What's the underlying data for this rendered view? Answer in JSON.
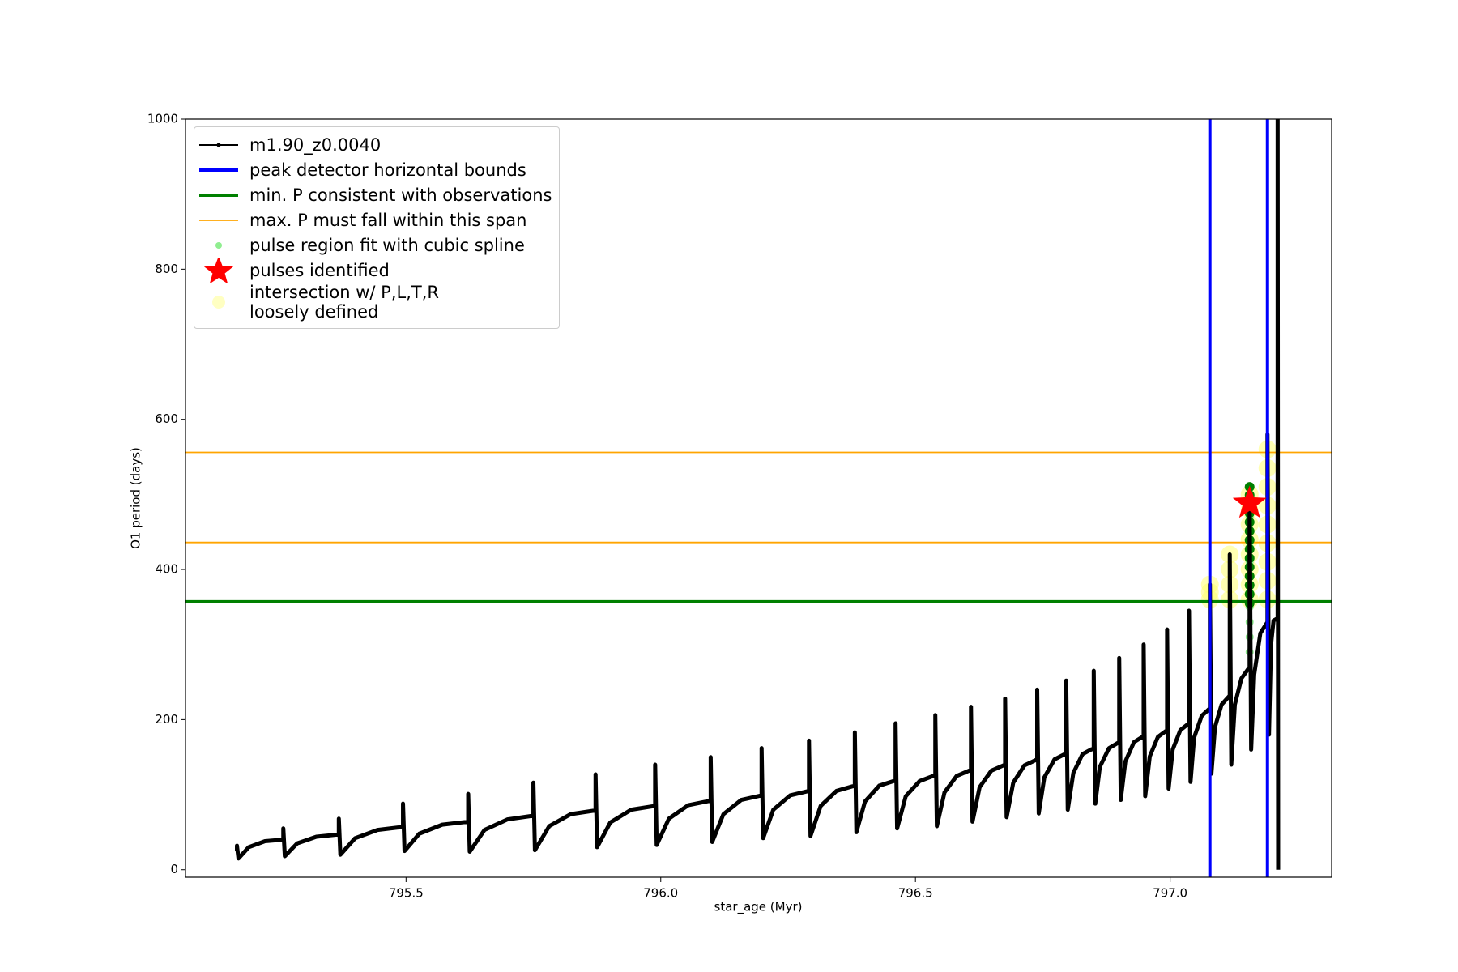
{
  "chart_data": {
    "type": "line",
    "x_label": "star_age (Myr)",
    "y_label": "O1 period (days)",
    "xlim": [
      795.067,
      797.317
    ],
    "ylim": [
      -10,
      1000
    ],
    "xticks": [
      795.5,
      {
        "value": 796.0,
        "label": "796.0"
      },
      796.5,
      {
        "value": 797.0,
        "label": "797.0"
      }
    ],
    "yticks": [
      0,
      200,
      400,
      600,
      800,
      1000
    ],
    "legend": "upper left",
    "series": [
      {
        "name": "m1.90_z0.0040",
        "kind": "line",
        "color": "black",
        "x": [
          795.168,
          795.168,
          795.171,
          795.191,
          795.223,
          795.259,
          795.259,
          795.262,
          795.286,
          795.324,
          795.368,
          795.368,
          795.371,
          795.4,
          795.444,
          795.494,
          795.494,
          795.497,
          795.526,
          795.571,
          795.622,
          795.622,
          795.625,
          795.654,
          795.699,
          795.75,
          795.75,
          795.753,
          795.781,
          795.823,
          795.872,
          795.872,
          795.875,
          795.901,
          795.942,
          795.989,
          795.989,
          795.992,
          796.016,
          796.054,
          796.098,
          796.098,
          796.101,
          796.123,
          796.158,
          796.198,
          796.198,
          796.201,
          796.221,
          796.254,
          796.291,
          796.291,
          796.294,
          796.314,
          796.345,
          796.381,
          796.381,
          796.384,
          796.401,
          796.429,
          796.461,
          796.461,
          796.464,
          796.481,
          796.508,
          796.539,
          796.539,
          796.542,
          796.557,
          796.581,
          796.609,
          796.609,
          796.612,
          796.626,
          796.649,
          796.676,
          796.676,
          796.679,
          796.692,
          796.714,
          796.739,
          796.739,
          796.742,
          796.753,
          796.773,
          796.796,
          796.796,
          796.799,
          796.81,
          796.828,
          796.85,
          796.85,
          796.853,
          796.862,
          796.88,
          796.9,
          796.9,
          796.903,
          796.912,
          796.929,
          796.948,
          796.948,
          796.951,
          796.96,
          796.976,
          796.994,
          796.994,
          796.997,
          797.005,
          797.02,
          797.037,
          797.037,
          797.04,
          797.047,
          797.062,
          797.078,
          797.078,
          797.081,
          797.088,
          797.101,
          797.117,
          797.117,
          797.12,
          797.127,
          797.14,
          797.156,
          797.156,
          797.159,
          797.165,
          797.177,
          797.191,
          797.191,
          797.194,
          797.198,
          797.203,
          797.211,
          797.211,
          797.212
        ],
        "values": [
          25,
          32,
          15,
          30,
          38,
          40,
          55,
          18,
          35,
          44,
          47,
          68,
          20,
          42,
          53,
          57,
          88,
          25,
          48,
          60,
          64,
          101,
          24,
          53,
          67,
          72,
          116,
          26,
          58,
          74,
          79,
          127,
          30,
          63,
          80,
          85,
          140,
          33,
          68,
          86,
          92,
          150,
          37,
          74,
          93,
          99,
          162,
          42,
          80,
          99,
          105,
          172,
          45,
          85,
          105,
          112,
          183,
          50,
          91,
          112,
          119,
          195,
          55,
          98,
          118,
          126,
          206,
          58,
          103,
          125,
          133,
          217,
          64,
          110,
          132,
          140,
          228,
          70,
          116,
          139,
          147,
          240,
          75,
          123,
          147,
          155,
          252,
          80,
          129,
          154,
          162,
          265,
          88,
          137,
          162,
          170,
          282,
          93,
          144,
          170,
          178,
          300,
          98,
          151,
          177,
          186,
          320,
          108,
          160,
          186,
          195,
          345,
          117,
          176,
          205,
          215,
          380,
          128,
          190,
          220,
          232,
          420,
          140,
          220,
          255,
          270,
          500,
          160,
          260,
          315,
          330,
          580,
          180,
          300,
          332,
          335,
          1000,
          0
        ]
      },
      {
        "name": "peak detector horizontal bounds",
        "kind": "vline",
        "color": "blue",
        "x": [
          797.078,
          797.191
        ]
      },
      {
        "name": "min. P consistent with observations",
        "kind": "hline",
        "color": "green",
        "values": [
          357
        ]
      },
      {
        "name": "max. P must fall within this span",
        "kind": "hline",
        "color": "orange",
        "values": [
          436,
          556
        ]
      },
      {
        "name": "pulse region fit with cubic spline",
        "kind": "scatter",
        "color": "lightgreen",
        "x": [
          797.156,
          797.156,
          797.156,
          797.156,
          797.156,
          797.156,
          797.156,
          797.156,
          797.156,
          797.156,
          797.156,
          797.156
        ],
        "values": [
          290,
          310,
          330,
          350,
          370,
          390,
          410,
          430,
          450,
          470,
          490,
          510
        ]
      },
      {
        "name": "pulses identified",
        "kind": "star",
        "color": "red",
        "x": [
          797.156
        ],
        "values": [
          488
        ]
      },
      {
        "name": "intersection w/ P,L,T,R\nloosely defined",
        "kind": "highlight",
        "color": "#ffff66",
        "x": [
          797.078,
          797.078,
          797.078,
          797.117,
          797.117,
          797.117,
          797.117,
          797.156,
          797.156,
          797.156,
          797.156,
          797.156,
          797.156,
          797.156,
          797.156,
          797.191,
          797.191,
          797.191,
          797.191,
          797.191,
          797.191,
          797.191,
          797.191,
          797.191
        ],
        "values": [
          360,
          370,
          380,
          360,
          380,
          400,
          420,
          360,
          380,
          400,
          420,
          440,
          460,
          480,
          500,
          360,
          385,
          410,
          435,
          460,
          485,
          510,
          535,
          560
        ]
      },
      {
        "kind": "scatter",
        "color": "green",
        "x": [
          797.156,
          797.156,
          797.156,
          797.156,
          797.156,
          797.156,
          797.156,
          797.156,
          797.156,
          797.156,
          797.156,
          797.156,
          797.156,
          797.156
        ],
        "values": [
          355,
          367,
          379,
          391,
          403,
          415,
          427,
          439,
          451,
          463,
          475,
          487,
          499,
          510
        ]
      }
    ]
  }
}
